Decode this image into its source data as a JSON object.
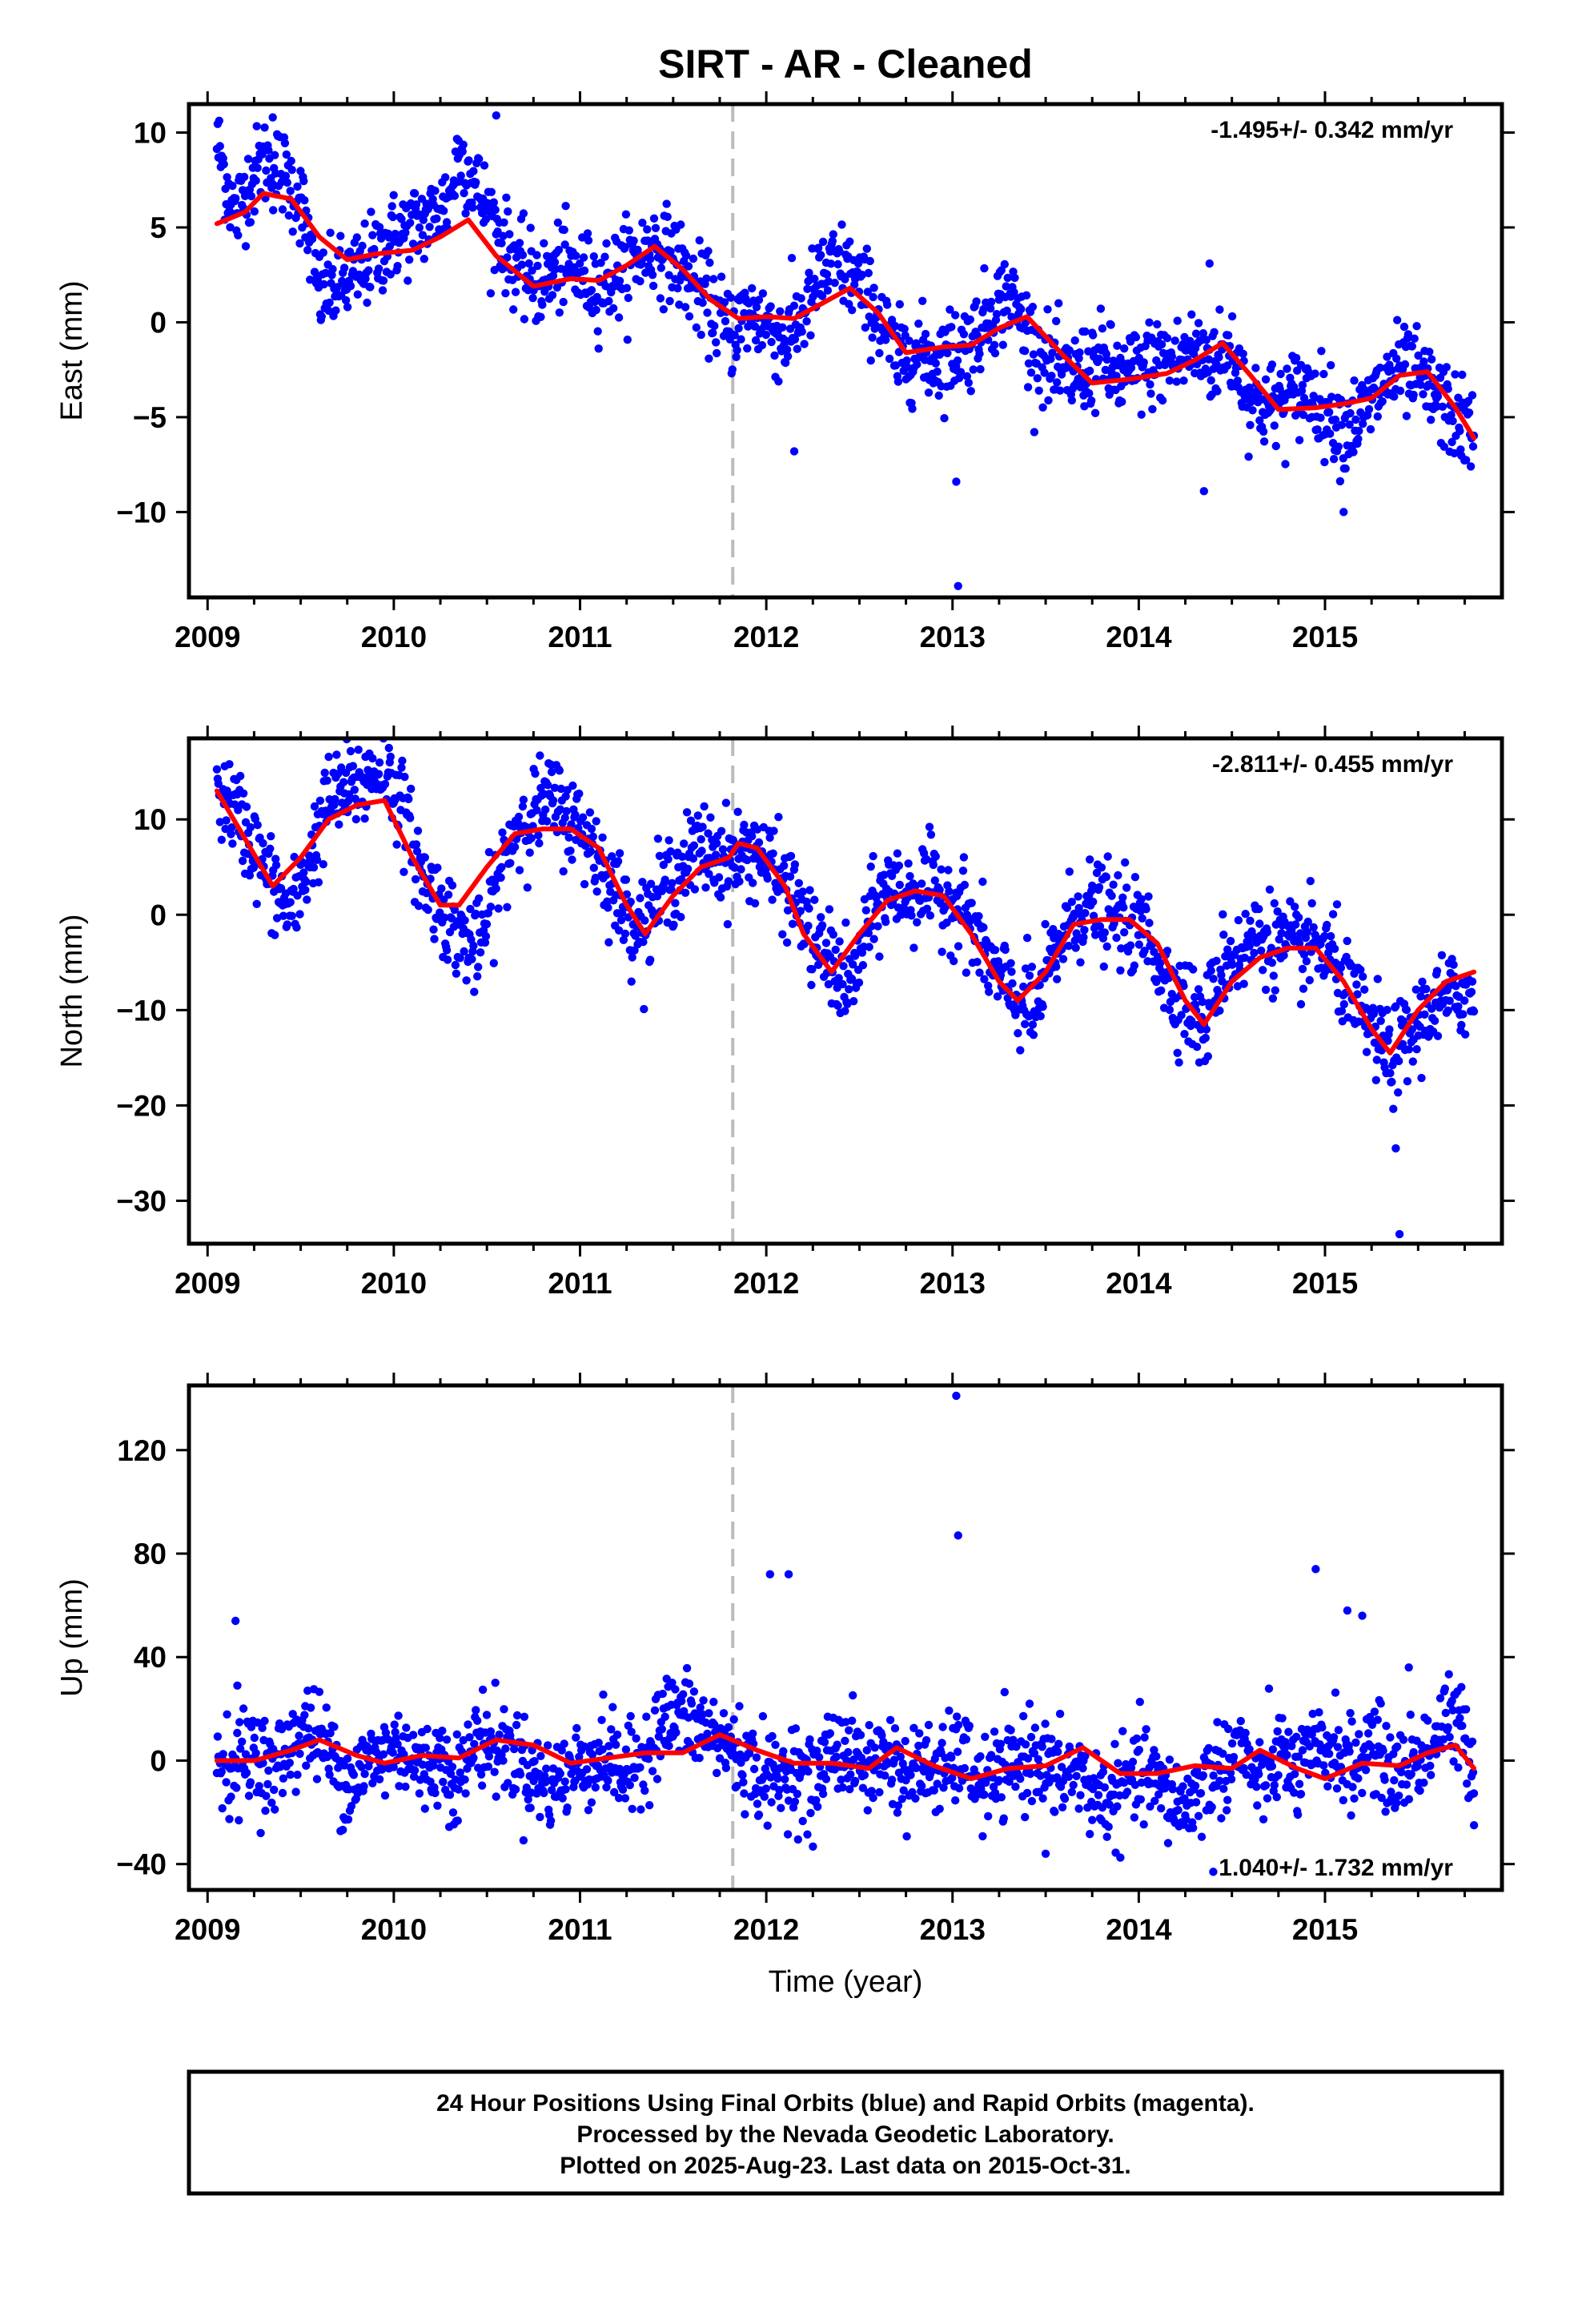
{
  "title": "SIRT  - AR - Cleaned",
  "x_axis_label": "Time (year)",
  "footer": {
    "line1": "24 Hour Positions Using Final Orbits (blue) and Rapid Orbits (magenta).",
    "line2": "Processed by the Nevada Geodetic Laboratory.",
    "line3": "Plotted on 2025-Aug-23. Last data on 2015-Oct-31."
  },
  "colors": {
    "data": "#0000ff",
    "model": "#ff0000",
    "break_line": "#bbbbbb",
    "frame": "#000000"
  },
  "chart_data": [
    {
      "type": "scatter",
      "panel": "east",
      "ylabel": "East (mm)",
      "xlim": [
        2008.9,
        2015.95
      ],
      "ylim": [
        -14.5,
        11.5
      ],
      "xticks": [
        2009,
        2010,
        2011,
        2012,
        2013,
        2014,
        2015
      ],
      "yticks": [
        -10,
        -5,
        0,
        5,
        10
      ],
      "rate_text": "-1.495+/- 0.342 mm/yr",
      "grid": false,
      "break_epoch": 2011.82,
      "series": [
        {
          "kind": "points",
          "x": [
            2009.05,
            2009.1,
            2009.15,
            2009.2,
            2009.3,
            2009.4,
            2009.5,
            2009.6,
            2009.7,
            2009.8,
            2009.9,
            2010.0,
            2010.1,
            2010.2,
            2010.3,
            2010.35,
            2010.4,
            2010.5,
            2010.6,
            2010.7,
            2010.8,
            2010.9,
            2011.0,
            2011.1,
            2011.2,
            2011.3,
            2011.4,
            2011.5,
            2011.6,
            2011.7,
            2011.8,
            2011.9,
            2012.0,
            2012.1,
            2012.2,
            2012.3,
            2012.4,
            2012.5,
            2012.6,
            2012.7,
            2012.8,
            2012.9,
            2013.0,
            2013.1,
            2013.2,
            2013.3,
            2013.4,
            2013.5,
            2013.6,
            2013.7,
            2013.8,
            2013.9,
            2014.0,
            2014.1,
            2014.2,
            2014.3,
            2014.4,
            2014.5,
            2014.6,
            2014.7,
            2014.8,
            2014.9,
            2015.0,
            2015.1,
            2015.2,
            2015.3,
            2015.4,
            2015.5,
            2015.6,
            2015.7,
            2015.8
          ],
          "y": [
            9.5,
            7.5,
            5.5,
            7.0,
            8.5,
            8.0,
            6.5,
            1.5,
            2.0,
            2.5,
            3.5,
            4.5,
            5.0,
            5.5,
            6.5,
            9.0,
            8.0,
            6.0,
            4.0,
            2.5,
            2.0,
            3.0,
            2.5,
            2.0,
            2.5,
            3.5,
            4.0,
            3.5,
            2.0,
            1.0,
            -0.5,
            0.5,
            0.0,
            -1.0,
            0.5,
            2.5,
            3.0,
            2.0,
            0.5,
            -2.0,
            -1.5,
            -2.0,
            -1.5,
            -1.0,
            0.5,
            1.5,
            -0.5,
            -2.0,
            -3.0,
            -2.5,
            -2.0,
            -3.0,
            -2.5,
            -2.0,
            -2.0,
            -1.5,
            -2.0,
            -1.5,
            -4.0,
            -4.5,
            -4.0,
            -3.5,
            -4.5,
            -5.5,
            -5.0,
            -3.5,
            -2.5,
            -3.0,
            -4.0,
            -5.0,
            -6.0
          ]
        },
        {
          "kind": "outliers",
          "x": [
            2009.35,
            2010.55,
            2012.15,
            2013.02,
            2013.03,
            2014.35,
            2014.38,
            2015.1
          ],
          "y": [
            10.8,
            10.9,
            -6.8,
            -8.4,
            -13.9,
            -8.9,
            3.1,
            -10.0
          ]
        },
        {
          "kind": "model",
          "x": [
            2009.05,
            2009.2,
            2009.3,
            2009.45,
            2009.6,
            2009.75,
            2009.9,
            2010.1,
            2010.25,
            2010.4,
            2010.55,
            2010.75,
            2010.95,
            2011.1,
            2011.25,
            2011.4,
            2011.55,
            2011.7,
            2011.85,
            2012.0,
            2012.15,
            2012.3,
            2012.45,
            2012.6,
            2012.75,
            2012.95,
            2013.1,
            2013.25,
            2013.4,
            2013.6,
            2013.75,
            2013.95,
            2014.15,
            2014.3,
            2014.45,
            2014.6,
            2014.75,
            2014.95,
            2015.1,
            2015.25,
            2015.4,
            2015.55,
            2015.7,
            2015.8
          ],
          "y": [
            5.2,
            5.8,
            6.8,
            6.5,
            4.5,
            3.3,
            3.6,
            3.8,
            4.5,
            5.4,
            3.5,
            1.9,
            2.3,
            2.2,
            3.0,
            4.0,
            2.8,
            1.2,
            0.2,
            0.3,
            0.2,
            1.0,
            1.8,
            0.5,
            -1.6,
            -1.3,
            -1.2,
            -0.3,
            0.3,
            -1.8,
            -3.2,
            -3.0,
            -2.7,
            -2.0,
            -1.1,
            -2.8,
            -4.6,
            -4.5,
            -4.3,
            -4.0,
            -2.8,
            -2.6,
            -4.5,
            -6.1
          ]
        }
      ]
    },
    {
      "type": "scatter",
      "panel": "north",
      "ylabel": "North (mm)",
      "xlim": [
        2008.9,
        2015.95
      ],
      "ylim": [
        -34.5,
        18.5
      ],
      "xticks": [
        2009,
        2010,
        2011,
        2012,
        2013,
        2014,
        2015
      ],
      "yticks": [
        -30,
        -20,
        -10,
        0,
        10
      ],
      "rate_text": "-2.811+/- 0.455 mm/yr",
      "grid": false,
      "break_epoch": 2011.82,
      "series": [
        {
          "kind": "points",
          "x": [
            2009.05,
            2009.15,
            2009.25,
            2009.35,
            2009.45,
            2009.55,
            2009.65,
            2009.75,
            2009.85,
            2009.95,
            2010.05,
            2010.15,
            2010.25,
            2010.35,
            2010.45,
            2010.55,
            2010.65,
            2010.75,
            2010.85,
            2010.95,
            2011.05,
            2011.15,
            2011.25,
            2011.35,
            2011.45,
            2011.55,
            2011.65,
            2011.75,
            2011.85,
            2011.95,
            2012.05,
            2012.15,
            2012.25,
            2012.35,
            2012.45,
            2012.55,
            2012.65,
            2012.75,
            2012.85,
            2012.95,
            2013.05,
            2013.15,
            2013.25,
            2013.35,
            2013.45,
            2013.55,
            2013.65,
            2013.75,
            2013.85,
            2013.95,
            2014.05,
            2014.15,
            2014.25,
            2014.35,
            2014.45,
            2014.55,
            2014.65,
            2014.75,
            2014.85,
            2014.95,
            2015.05,
            2015.15,
            2015.25,
            2015.35,
            2015.45,
            2015.55,
            2015.65,
            2015.75,
            2015.8
          ],
          "y": [
            13,
            11,
            7,
            3,
            0,
            6,
            12,
            13,
            14,
            16,
            11,
            4,
            1,
            -2,
            -4,
            3,
            9,
            11,
            12,
            10,
            8,
            4,
            0,
            -1,
            3,
            5,
            7,
            6,
            6,
            7,
            4,
            2,
            -3,
            -5,
            -8,
            -1,
            3,
            2,
            3,
            2,
            1,
            -3,
            -7,
            -9,
            -10,
            -4,
            0,
            1,
            0,
            -1,
            -2,
            -7,
            -9,
            -12,
            -5,
            -4,
            -2,
            -3,
            -4,
            -3,
            -5,
            -9,
            -12,
            -15,
            -13,
            -10,
            -9,
            -8,
            -9
          ]
        },
        {
          "kind": "outliers",
          "x": [
            2015.38,
            2015.4
          ],
          "y": [
            -24.5,
            -33.5
          ]
        },
        {
          "kind": "model",
          "x": [
            2009.05,
            2009.2,
            2009.35,
            2009.5,
            2009.65,
            2009.8,
            2009.95,
            2010.1,
            2010.25,
            2010.35,
            2010.5,
            2010.65,
            2010.8,
            2010.95,
            2011.1,
            2011.25,
            2011.35,
            2011.5,
            2011.65,
            2011.8,
            2011.85,
            2011.95,
            2012.1,
            2012.2,
            2012.35,
            2012.5,
            2012.65,
            2012.8,
            2012.95,
            2013.1,
            2013.25,
            2013.35,
            2013.5,
            2013.65,
            2013.8,
            2013.95,
            2014.1,
            2014.25,
            2014.35,
            2014.5,
            2014.65,
            2014.8,
            2014.95,
            2015.1,
            2015.25,
            2015.35,
            2015.5,
            2015.65,
            2015.8
          ],
          "y": [
            13,
            8,
            3,
            6,
            10,
            11.5,
            12,
            6,
            1,
            1,
            5,
            8.5,
            9,
            9,
            7,
            1,
            -2,
            2,
            5,
            6,
            7.5,
            7,
            3,
            -2,
            -6,
            -2,
            1.5,
            2.5,
            2,
            -2,
            -7,
            -9,
            -6,
            -1,
            -0.5,
            -0.5,
            -3,
            -9,
            -11.5,
            -7,
            -4.5,
            -3.5,
            -3.5,
            -7,
            -12,
            -14.5,
            -10,
            -7,
            -6
          ]
        }
      ]
    },
    {
      "type": "scatter",
      "panel": "up",
      "ylabel": "Up (mm)",
      "xlim": [
        2008.9,
        2015.95
      ],
      "ylim": [
        -50,
        145
      ],
      "xticks": [
        2009,
        2010,
        2011,
        2012,
        2013,
        2014,
        2015
      ],
      "yticks": [
        -40,
        0,
        40,
        80,
        120
      ],
      "rate_text": "1.040+/- 1.732 mm/yr",
      "grid": false,
      "break_epoch": 2011.82,
      "series": [
        {
          "kind": "points",
          "x": [
            2009.05,
            2009.15,
            2009.25,
            2009.35,
            2009.45,
            2009.55,
            2009.65,
            2009.75,
            2009.85,
            2009.95,
            2010.05,
            2010.15,
            2010.25,
            2010.35,
            2010.45,
            2010.55,
            2010.65,
            2010.75,
            2010.85,
            2010.95,
            2011.05,
            2011.15,
            2011.25,
            2011.35,
            2011.45,
            2011.55,
            2011.65,
            2011.75,
            2011.85,
            2011.95,
            2012.05,
            2012.15,
            2012.25,
            2012.35,
            2012.45,
            2012.55,
            2012.65,
            2012.75,
            2012.85,
            2012.95,
            2013.05,
            2013.15,
            2013.25,
            2013.35,
            2013.45,
            2013.55,
            2013.65,
            2013.75,
            2013.85,
            2013.95,
            2014.05,
            2014.15,
            2014.25,
            2014.35,
            2014.45,
            2014.55,
            2014.65,
            2014.75,
            2014.85,
            2014.95,
            2015.05,
            2015.15,
            2015.25,
            2015.35,
            2015.45,
            2015.55,
            2015.65,
            2015.75,
            2015.8
          ],
          "y": [
            2,
            -3,
            5,
            -6,
            8,
            12,
            4,
            -9,
            -2,
            3,
            6,
            -4,
            1,
            -8,
            10,
            5,
            3,
            -6,
            -10,
            -4,
            0,
            2,
            -7,
            4,
            15,
            18,
            12,
            8,
            3,
            -5,
            -8,
            -2,
            -12,
            6,
            2,
            -3,
            4,
            -8,
            -2,
            -5,
            3,
            -10,
            -6,
            -2,
            4,
            -8,
            -3,
            -12,
            -15,
            -8,
            -5,
            -14,
            -18,
            -8,
            -2,
            5,
            -10,
            3,
            -5,
            2,
            6,
            -4,
            8,
            -6,
            -2,
            4,
            15,
            10,
            -3
          ]
        },
        {
          "kind": "outliers",
          "x": [
            2009.15,
            2009.16,
            2012.02,
            2012.12,
            2013.02,
            2013.03,
            2014.95,
            2015.12,
            2015.2,
            2015.45,
            2015.8,
            2014.4,
            2013.5
          ],
          "y": [
            54,
            29,
            72,
            72,
            141,
            87,
            74,
            58,
            56,
            36,
            -25,
            -43,
            -36
          ]
        },
        {
          "kind": "model",
          "x": [
            2009.05,
            2009.25,
            2009.45,
            2009.6,
            2009.8,
            2009.95,
            2010.15,
            2010.35,
            2010.55,
            2010.75,
            2010.95,
            2011.15,
            2011.35,
            2011.55,
            2011.75,
            2011.95,
            2012.15,
            2012.35,
            2012.55,
            2012.7,
            2012.9,
            2013.1,
            2013.3,
            2013.5,
            2013.7,
            2013.9,
            2014.1,
            2014.3,
            2014.5,
            2014.65,
            2014.85,
            2015.0,
            2015.2,
            2015.4,
            2015.55,
            2015.7,
            2015.8
          ],
          "y": [
            0,
            0,
            4,
            8,
            2,
            -1,
            2,
            1,
            8,
            6,
            -1,
            1,
            3,
            3,
            10,
            4,
            -1,
            -1,
            -3,
            5,
            -2,
            -7,
            -3,
            -2,
            5,
            -5,
            -5,
            -2,
            -3,
            4,
            -3,
            -7,
            -1,
            -2,
            3,
            6,
            -3
          ]
        }
      ]
    }
  ]
}
